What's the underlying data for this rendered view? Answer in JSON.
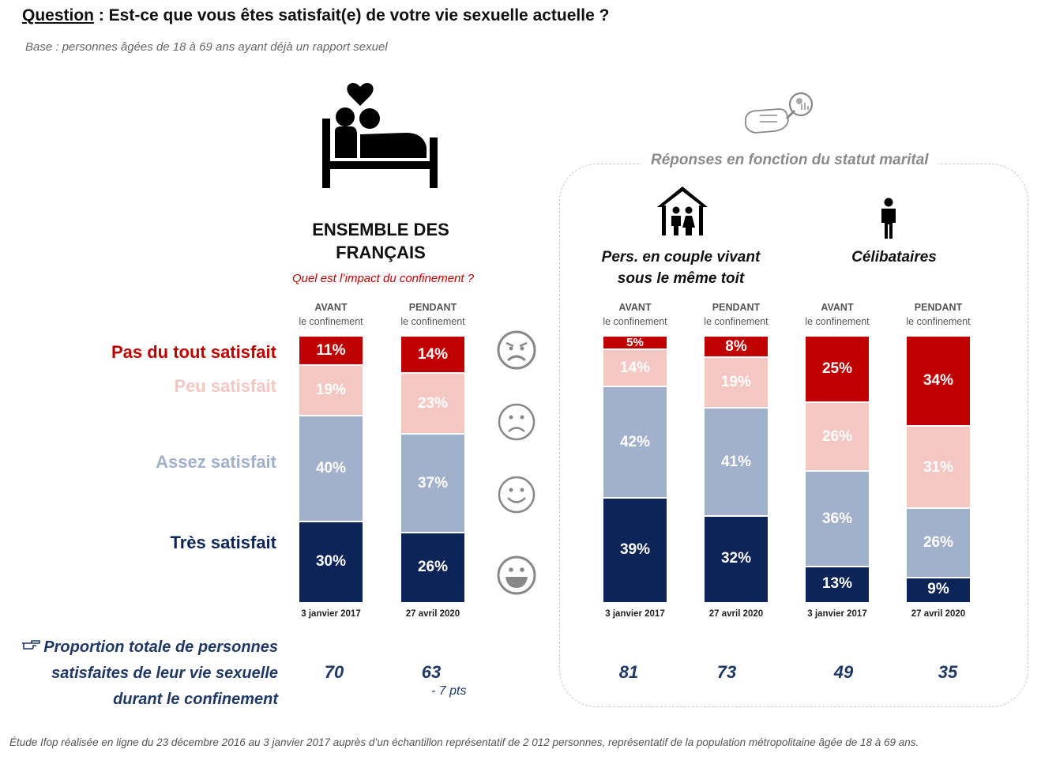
{
  "header": {
    "question_word": "Question",
    "question_text": " : Est-ce que vous êtes satisfait(e) de votre vie sexuelle actuelle ?",
    "base": "Base : personnes âgées de 18 à 69 ans ayant déjà un rapport sexuel"
  },
  "left_group": {
    "title_line1": "ENSEMBLE DES",
    "title_line2": "FRANÇAIS",
    "impact": "Quel est l’impact du confinement ?"
  },
  "right_group": {
    "panel_title": "Réponses en fonction du statut marital",
    "couple_line1": "Pers. en couple vivant",
    "couple_line2": "sous le même toit",
    "single": "Célibataires"
  },
  "row_labels": {
    "pas": "Pas du tout satisfait",
    "peu": "Peu satisfait",
    "assez": "Assez satisfait",
    "tres": "Très satisfait"
  },
  "colors": {
    "pas": "#c00000",
    "peu": "#f4c7c3",
    "assez": "#a2b1cb",
    "tres": "#0d2459"
  },
  "icons": [
    "couple-in-bed-heart-icon",
    "magnifier-hand-icon",
    "family-house-icon",
    "single-person-icon",
    "angry-face-icon",
    "sad-face-icon",
    "smile-face-icon",
    "grin-face-icon",
    "pointing-hand-icon"
  ],
  "totals": {
    "label_line1": "Proportion totale de personnes",
    "label_line2": "satisfaites de leur vie sexuelle",
    "label_line3": "durant le confinement",
    "diff": "- 7 pts"
  },
  "footnote": "Étude Ifop réalisée en ligne du 23 décembre 2016 au 3 janvier 2017 auprès d’un échantillon représentatif de 2 012 personnes, représentatif de la population métropolitaine âgée de 18 à 69 ans.",
  "chart_data": {
    "type": "bar",
    "stacked": true,
    "unit": "%",
    "series_order": [
      "Pas du tout satisfait",
      "Peu satisfait",
      "Assez satisfait",
      "Très satisfait"
    ],
    "bars": [
      {
        "group": "ENSEMBLE DES FRANÇAIS",
        "head1": "AVANT",
        "head2": "le confinement",
        "date": "3 janvier 2017",
        "values": [
          11,
          19,
          40,
          30
        ],
        "labels": [
          "11%",
          "19%",
          "40%",
          "30%"
        ],
        "total": "70"
      },
      {
        "group": "ENSEMBLE DES FRANÇAIS",
        "head1": "PENDANT",
        "head2": "le confinement",
        "date": "27 avril 2020",
        "values": [
          14,
          23,
          37,
          26
        ],
        "labels": [
          "14%",
          "23%",
          "37%",
          "26%"
        ],
        "total": "63"
      },
      {
        "group": "Pers. en couple vivant sous le même toit",
        "head1": "AVANT",
        "head2": "le confinement",
        "date": "3 janvier 2017",
        "values": [
          5,
          14,
          42,
          39
        ],
        "labels": [
          "5%",
          "14%",
          "42%",
          "39%"
        ],
        "total": "81"
      },
      {
        "group": "Pers. en couple vivant sous le même toit",
        "head1": "PENDANT",
        "head2": "le confinement",
        "date": "27 avril 2020",
        "values": [
          8,
          19,
          41,
          32
        ],
        "labels": [
          "8%",
          "19%",
          "41%",
          "32%"
        ],
        "total": "73"
      },
      {
        "group": "Célibataires",
        "head1": "AVANT",
        "head2": "le confinement",
        "date": "3 janvier 2017",
        "values": [
          25,
          26,
          36,
          13
        ],
        "labels": [
          "25%",
          "26%",
          "36%",
          "13%"
        ],
        "total": "49"
      },
      {
        "group": "Célibataires",
        "head1": "PENDANT",
        "head2": "le confinement",
        "date": "27 avril 2020",
        "values": [
          34,
          31,
          26,
          9
        ],
        "labels": [
          "34%",
          "31%",
          "26%",
          "9%"
        ],
        "total": "35"
      }
    ]
  }
}
